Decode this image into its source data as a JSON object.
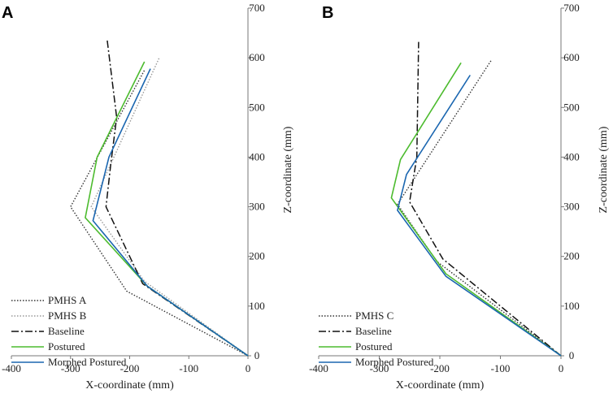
{
  "chart_data": [
    {
      "type": "line",
      "panel_label": "A",
      "xlabel": "X-coordinate (mm)",
      "ylabel": "Z-coordinate (mm)",
      "xlim": [
        -400,
        0
      ],
      "ylim": [
        0,
        700
      ],
      "xticks": [
        -400,
        -300,
        -200,
        -100,
        0
      ],
      "yticks": [
        0,
        100,
        200,
        300,
        400,
        500,
        600,
        700
      ],
      "grid": false,
      "legend_position": "bottom-left",
      "series": [
        {
          "name": "PMHS A",
          "style": "dotted-dark",
          "color": "#333333",
          "x": [
            0,
            -205,
            -300,
            -175
          ],
          "z": [
            0,
            130,
            300,
            575
          ]
        },
        {
          "name": "PMHS B",
          "style": "dotted-light",
          "color": "#999999",
          "x": [
            0,
            -175,
            -265,
            -150
          ],
          "z": [
            0,
            150,
            300,
            600
          ]
        },
        {
          "name": "Baseline",
          "style": "dashdot",
          "color": "#111111",
          "x": [
            0,
            -178,
            -240,
            -232,
            -222,
            -238
          ],
          "z": [
            0,
            145,
            300,
            385,
            480,
            635
          ]
        },
        {
          "name": "Postured",
          "style": "solid",
          "color": "#4cbb2e",
          "x": [
            0,
            -170,
            -275,
            -255,
            -175
          ],
          "z": [
            0,
            140,
            278,
            400,
            592
          ]
        },
        {
          "name": "Morphed Postured",
          "style": "solid",
          "color": "#1a66b0",
          "x": [
            0,
            -170,
            -262,
            -235,
            -165
          ],
          "z": [
            0,
            140,
            272,
            400,
            578
          ]
        }
      ]
    },
    {
      "type": "line",
      "panel_label": "B",
      "xlabel": "X-coordinate (mm)",
      "ylabel": "Z-coordinate (mm)",
      "xlim": [
        -400,
        0
      ],
      "ylim": [
        0,
        700
      ],
      "xticks": [
        -400,
        -300,
        -200,
        -100,
        0
      ],
      "yticks": [
        0,
        100,
        200,
        300,
        400,
        500,
        600,
        700
      ],
      "grid": false,
      "legend_position": "bottom-left",
      "series": [
        {
          "name": "PMHS C",
          "style": "dotted-dark",
          "color": "#333333",
          "x": [
            0,
            -205,
            -270,
            -115
          ],
          "z": [
            0,
            190,
            305,
            595
          ]
        },
        {
          "name": "Baseline",
          "style": "dashdot",
          "color": "#111111",
          "x": [
            0,
            -195,
            -250,
            -238,
            -235
          ],
          "z": [
            0,
            195,
            310,
            400,
            632
          ]
        },
        {
          "name": "Postured",
          "style": "solid",
          "color": "#4cbb2e",
          "x": [
            0,
            -190,
            -280,
            -265,
            -165
          ],
          "z": [
            0,
            165,
            318,
            395,
            590
          ]
        },
        {
          "name": "Morphed Postured",
          "style": "solid",
          "color": "#1a66b0",
          "x": [
            0,
            -190,
            -270,
            -255,
            -150
          ],
          "z": [
            0,
            160,
            293,
            365,
            565
          ]
        }
      ]
    }
  ]
}
